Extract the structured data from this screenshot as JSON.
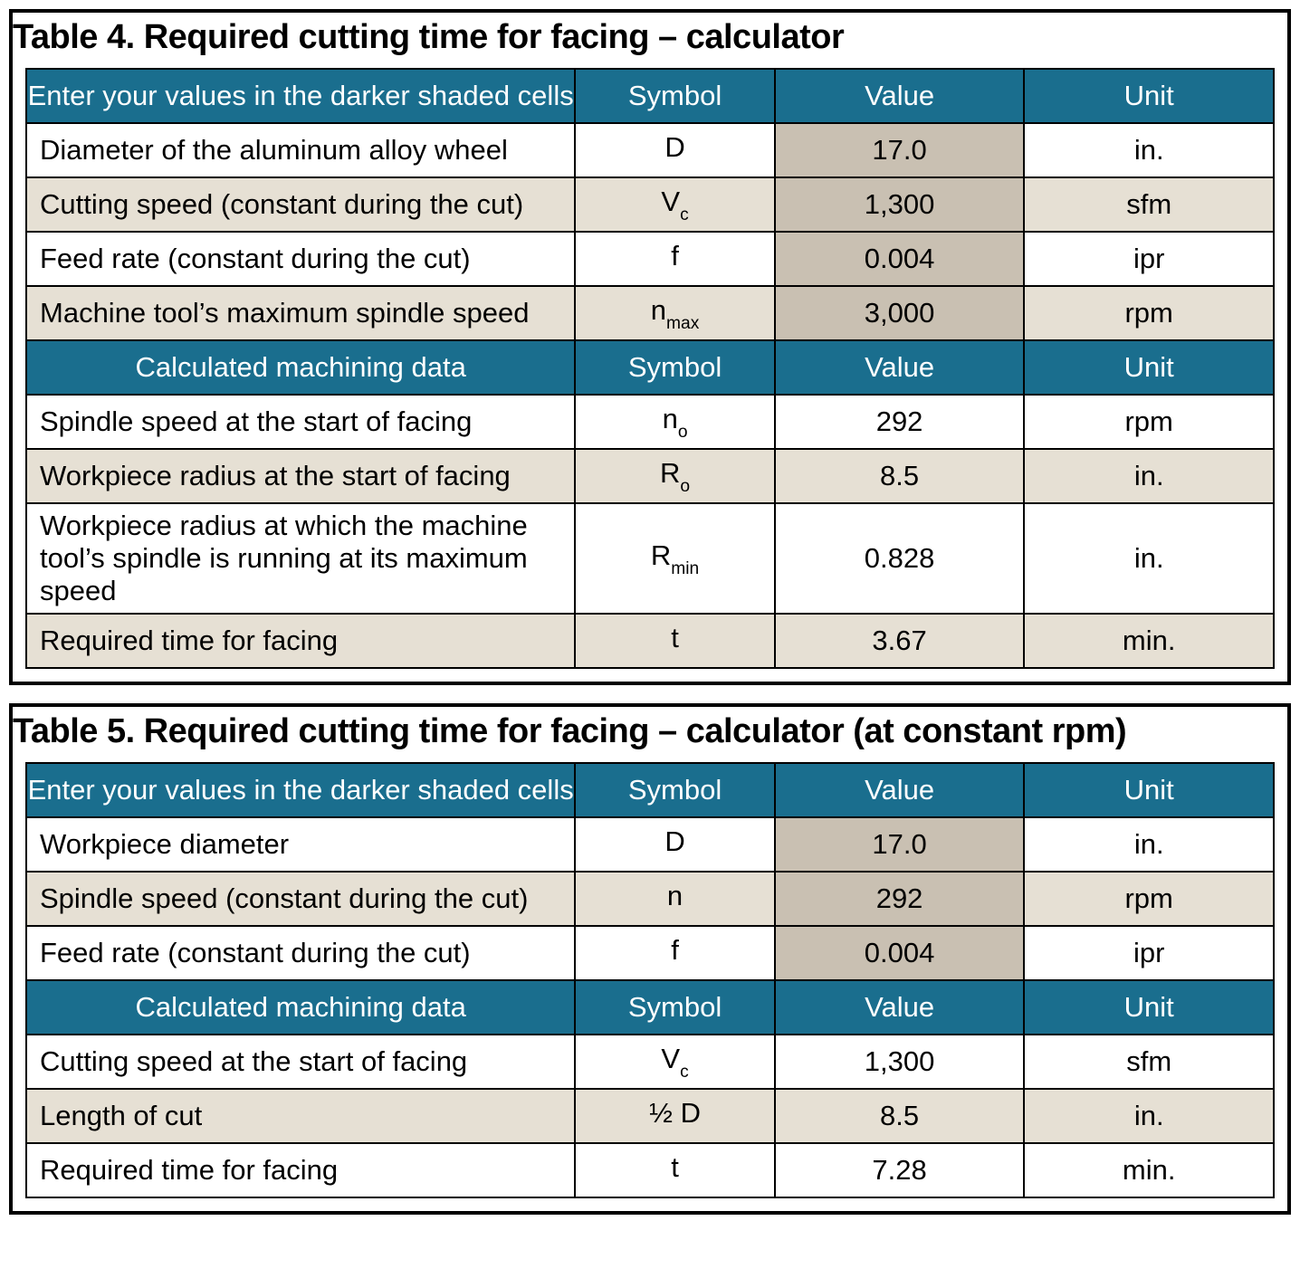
{
  "colors": {
    "header_bg": "#1a6e8e",
    "header_fg": "#ffffff",
    "row_white": "#ffffff",
    "row_tan": "#e6e0d4",
    "input_bg": "#c9c0b2",
    "border": "#000000"
  },
  "table4": {
    "title": "Table 4. Required cutting time for facing – calculator",
    "hdr_input": {
      "label": "Enter your values in the darker shaded cells",
      "symbol": "Symbol",
      "value": "Value",
      "unit": "Unit"
    },
    "input_rows": [
      {
        "label": "Diameter of the aluminum alloy wheel",
        "sym": "D",
        "sub": "",
        "value": "17.0",
        "unit": "in."
      },
      {
        "label": "Cutting speed (constant during the cut)",
        "sym": "V",
        "sub": "c",
        "value": "1,300",
        "unit": "sfm"
      },
      {
        "label": "Feed rate (constant during the cut)",
        "sym": "f",
        "sub": "",
        "value": "0.004",
        "unit": "ipr"
      },
      {
        "label": "Machine tool’s maximum spindle speed",
        "sym": "n",
        "sub": "max",
        "value": "3,000",
        "unit": "rpm"
      }
    ],
    "hdr_calc": {
      "label": "Calculated machining data",
      "symbol": "Symbol",
      "value": "Value",
      "unit": "Unit"
    },
    "calc_rows": [
      {
        "label": "Spindle speed at the start of facing",
        "sym": "n",
        "sub": "o",
        "value": "292",
        "unit": "rpm",
        "tall": false
      },
      {
        "label": "Workpiece radius at the start of facing",
        "sym": "R",
        "sub": "o",
        "value": "8.5",
        "unit": "in.",
        "tall": false
      },
      {
        "label": "Workpiece radius at which the machine tool’s spindle is running at its maximum speed",
        "sym": "R",
        "sub": "min",
        "value": "0.828",
        "unit": "in.",
        "tall": true
      },
      {
        "label": "Required time for facing",
        "sym": "t",
        "sub": "",
        "value": "3.67",
        "unit": "min.",
        "tall": false
      }
    ]
  },
  "table5": {
    "title": "Table 5. Required cutting time for facing – calculator (at constant rpm)",
    "hdr_input": {
      "label": "Enter your values in the darker shaded cells",
      "symbol": "Symbol",
      "value": "Value",
      "unit": "Unit"
    },
    "input_rows": [
      {
        "label": "Workpiece diameter",
        "sym": "D",
        "sub": "",
        "value": "17.0",
        "unit": "in."
      },
      {
        "label": "Spindle speed (constant during the cut)",
        "sym": "n",
        "sub": "",
        "value": "292",
        "unit": "rpm"
      },
      {
        "label": "Feed rate (constant during the cut)",
        "sym": "f",
        "sub": "",
        "value": "0.004",
        "unit": "ipr"
      }
    ],
    "hdr_calc": {
      "label": "Calculated machining data",
      "symbol": "Symbol",
      "value": "Value",
      "unit": "Unit"
    },
    "calc_rows": [
      {
        "label": "Cutting speed at the start of facing",
        "sym": "V",
        "sub": "c",
        "value": "1,300",
        "unit": "sfm"
      },
      {
        "label": "Length of cut",
        "sym": "½ D",
        "sub": "",
        "value": "8.5",
        "unit": "in."
      },
      {
        "label": "Required time for facing",
        "sym": "t",
        "sub": "",
        "value": "7.28",
        "unit": "min."
      }
    ]
  }
}
